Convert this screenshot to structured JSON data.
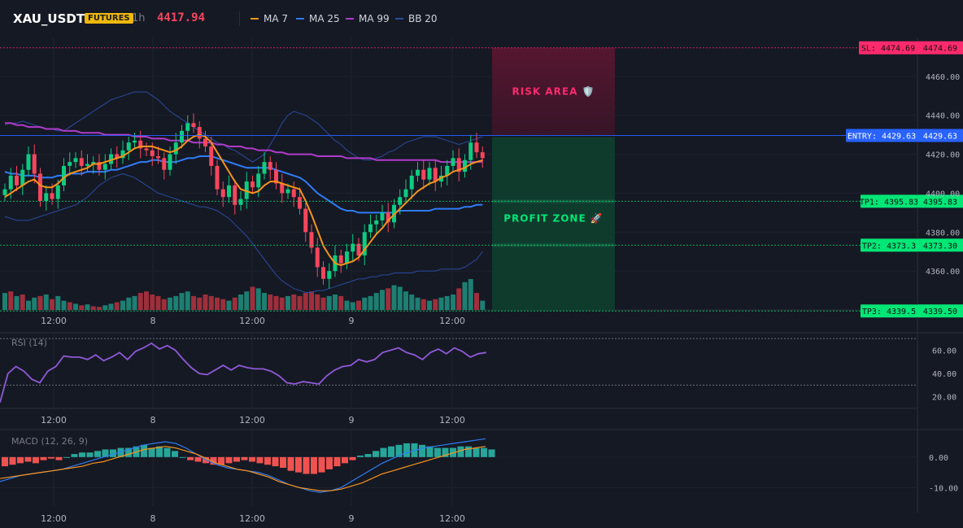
{
  "header": {
    "symbol": "XAU_USDT",
    "badge": "FUTURES",
    "timeframe": "1h",
    "last_price": "4417.94",
    "legend": [
      {
        "label": "MA 7",
        "color": "#f7931a"
      },
      {
        "label": "MA 25",
        "color": "#2f7cf6"
      },
      {
        "label": "MA 99",
        "color": "#b03bc9"
      },
      {
        "label": "BB 20",
        "color": "#2b4a9e"
      }
    ]
  },
  "colors": {
    "up": "#0ecb81",
    "down": "#f6465d",
    "vol_up": "#1d7f72",
    "vol_down": "#9e2f3c"
  },
  "chart_data": [
    {
      "type": "candlestick",
      "name": "price",
      "ylim": [
        4340,
        4480
      ],
      "y_ticks": [
        4360,
        4380,
        4400,
        4420,
        4440,
        4460
      ],
      "y_tick_labels": [
        "4360.00",
        "4380.00",
        "4400.00",
        "4420.00",
        "4440.00",
        "4460.00"
      ],
      "x_tick_labels": [
        "12:00",
        "8",
        "12:00",
        "9",
        "12:00"
      ],
      "close": [
        4402,
        4409,
        4404,
        4412,
        4420,
        4410,
        4396,
        4400,
        4397,
        4404,
        4414,
        4416,
        4418,
        4414,
        4415,
        4416,
        4412,
        4415,
        4420,
        4418,
        4422,
        4426,
        4427,
        4423,
        4422,
        4419,
        4418,
        4412,
        4420,
        4426,
        4432,
        4436,
        4434,
        4428,
        4424,
        4414,
        4402,
        4398,
        4404,
        4394,
        4397,
        4406,
        4403,
        4410,
        4416,
        4412,
        4405,
        4400,
        4402,
        4398,
        4392,
        4380,
        4372,
        4362,
        4356,
        4360,
        4368,
        4364,
        4370,
        4374,
        4368,
        4380,
        4384,
        4386,
        4390,
        4385,
        4394,
        4398,
        4402,
        4409,
        4412,
        4407,
        4413,
        4406,
        4409,
        4414,
        4418,
        4411,
        4417,
        4426,
        4421,
        4418
      ],
      "ma7": [
        4398,
        4400,
        4402,
        4404,
        4406,
        4407,
        4404,
        4403,
        4403,
        4405,
        4408,
        4410,
        4411,
        4412,
        4413,
        4415,
        4415,
        4416,
        4417,
        4418,
        4419,
        4421,
        4423,
        4424,
        4424,
        4424,
        4423,
        4422,
        4421,
        4422,
        4424,
        4427,
        4429,
        4430,
        4429,
        4426,
        4421,
        4416,
        4411,
        4406,
        4402,
        4401,
        4400,
        4401,
        4404,
        4406,
        4406,
        4405,
        4404,
        4403,
        4402,
        4396,
        4389,
        4381,
        4373,
        4368,
        4364,
        4363,
        4364,
        4365,
        4367,
        4371,
        4375,
        4379,
        4382,
        4386,
        4389,
        4392,
        4395,
        4398,
        4401,
        4403,
        4405,
        4406,
        4408,
        4409,
        4411,
        4412,
        4413,
        4415,
        4416,
        4417
      ],
      "ma25": [
        4411,
        4410,
        4410,
        4409,
        4409,
        4409,
        4408,
        4408,
        4408,
        4409,
        4409,
        4410,
        4410,
        4410,
        4411,
        4411,
        4411,
        4411,
        4412,
        4412,
        4413,
        4414,
        4415,
        4416,
        4416,
        4417,
        4417,
        4416,
        4416,
        4416,
        4417,
        4418,
        4418,
        4419,
        4419,
        4419,
        4418,
        4417,
        4416,
        4415,
        4414,
        4413,
        4413,
        4413,
        4413,
        4413,
        4412,
        4411,
        4410,
        4409,
        4408,
        4406,
        4403,
        4400,
        4398,
        4396,
        4394,
        4392,
        4391,
        4391,
        4390,
        4390,
        4390,
        4390,
        4390,
        4390,
        4390,
        4391,
        4391,
        4391,
        4391,
        4391,
        4391,
        4392,
        4392,
        4392,
        4392,
        4392,
        4393,
        4393,
        4394,
        4394
      ],
      "ma99": [
        4436,
        4436,
        4435,
        4435,
        4434,
        4434,
        4434,
        4433,
        4433,
        4433,
        4432,
        4432,
        4432,
        4431,
        4431,
        4431,
        4431,
        4430,
        4430,
        4430,
        4430,
        4430,
        4429,
        4429,
        4429,
        4428,
        4428,
        4428,
        4427,
        4427,
        4427,
        4427,
        4426,
        4426,
        4426,
        4426,
        4425,
        4425,
        4424,
        4424,
        4424,
        4423,
        4423,
        4422,
        4422,
        4422,
        4421,
        4421,
        4420,
        4420,
        4420,
        4420,
        4420,
        4419,
        4419,
        4419,
        4419,
        4419,
        4418,
        4418,
        4418,
        4418,
        4418,
        4417,
        4417,
        4417,
        4417,
        4417,
        4417,
        4417,
        4417,
        4417,
        4417,
        4417,
        4416,
        4416,
        4416,
        4416,
        4416,
        4416,
        4416,
        4416
      ],
      "bb_upper": [
        4435,
        4436,
        4436,
        4437,
        4436,
        4435,
        4434,
        4433,
        4433,
        4432,
        4432,
        4434,
        4436,
        4438,
        4440,
        4442,
        4444,
        4446,
        4448,
        4449,
        4450,
        4451,
        4452,
        4452,
        4452,
        4450,
        4448,
        4445,
        4442,
        4440,
        4438,
        4436,
        4434,
        4432,
        4430,
        4428,
        4426,
        4425,
        4423,
        4422,
        4420,
        4418,
        4416,
        4418,
        4420,
        4425,
        4430,
        4436,
        4440,
        4442,
        4441,
        4440,
        4438,
        4436,
        4433,
        4430,
        4427,
        4425,
        4422,
        4420,
        4418,
        4417,
        4417,
        4418,
        4419,
        4421,
        4422,
        4424,
        4426,
        4427,
        4428,
        4429,
        4429,
        4429,
        4428,
        4427,
        4426,
        4425,
        4426,
        4427,
        4428,
        4429
      ],
      "bb_lower": [
        4388,
        4387,
        4386,
        4386,
        4386,
        4387,
        4388,
        4389,
        4390,
        4391,
        4392,
        4393,
        4394,
        4396,
        4398,
        4401,
        4404,
        4406,
        4408,
        4409,
        4410,
        4409,
        4408,
        4406,
        4404,
        4402,
        4400,
        4399,
        4398,
        4397,
        4396,
        4395,
        4394,
        4393,
        4393,
        4392,
        4391,
        4389,
        4387,
        4384,
        4381,
        4378,
        4374,
        4370,
        4366,
        4362,
        4358,
        4355,
        4353,
        4351,
        4350,
        4349,
        4349,
        4350,
        4350,
        4351,
        4352,
        4353,
        4354,
        4355,
        4356,
        4356,
        4357,
        4357,
        4358,
        4358,
        4359,
        4359,
        4359,
        4359,
        4360,
        4360,
        4360,
        4360,
        4361,
        4361,
        4361,
        4361,
        4362,
        4364,
        4366,
        4370
      ],
      "levels": [
        {
          "key": "sl",
          "price": 4474.69,
          "label": "SL: 4474.69",
          "value_label": "4474.69",
          "color": "#ff2a6d"
        },
        {
          "key": "entry",
          "price": 4429.63,
          "label": "ENTRY: 4429.63",
          "value_label": "4429.63",
          "color": "#2962ff"
        },
        {
          "key": "tp1",
          "price": 4395.83,
          "label": "TP1: 4395.83",
          "value_label": "4395.83",
          "color": "#00e676"
        },
        {
          "key": "tp2",
          "price": 4373.3,
          "label": "TP2: 4373.3",
          "value_label": "4373.30",
          "color": "#00e676"
        },
        {
          "key": "tp3",
          "price": 4339.5,
          "label": "TP3: 4339.5",
          "value_label": "4339.50",
          "color": "#00e676"
        }
      ],
      "zones": {
        "risk_label": "RISK AREA 🛡️",
        "profit_label": "PROFIT ZONE 🚀"
      },
      "volume": [
        0.55,
        0.6,
        0.45,
        0.5,
        0.3,
        0.4,
        0.45,
        0.5,
        0.35,
        0.45,
        0.3,
        0.25,
        0.2,
        0.15,
        0.18,
        0.12,
        0.1,
        0.15,
        0.2,
        0.25,
        0.3,
        0.4,
        0.45,
        0.55,
        0.6,
        0.5,
        0.45,
        0.35,
        0.4,
        0.45,
        0.55,
        0.6,
        0.45,
        0.4,
        0.5,
        0.45,
        0.4,
        0.35,
        0.3,
        0.4,
        0.5,
        0.6,
        0.75,
        0.7,
        0.55,
        0.5,
        0.45,
        0.4,
        0.45,
        0.5,
        0.45,
        0.55,
        0.6,
        0.5,
        0.4,
        0.45,
        0.5,
        0.45,
        0.3,
        0.25,
        0.3,
        0.4,
        0.45,
        0.55,
        0.65,
        0.7,
        0.8,
        0.75,
        0.6,
        0.5,
        0.4,
        0.35,
        0.3,
        0.35,
        0.4,
        0.45,
        0.5,
        0.7,
        0.9,
        1.0,
        0.55,
        0.3
      ],
      "volume_up": [
        1,
        0,
        1,
        0,
        1,
        1,
        0,
        1,
        0,
        1,
        1,
        0,
        1,
        0,
        1,
        0,
        0,
        1,
        1,
        0,
        1,
        1,
        1,
        0,
        0,
        0,
        0,
        0,
        1,
        1,
        1,
        1,
        0,
        0,
        0,
        0,
        0,
        0,
        1,
        0,
        1,
        1,
        0,
        1,
        1,
        0,
        0,
        0,
        1,
        0,
        0,
        0,
        0,
        0,
        0,
        1,
        1,
        0,
        1,
        1,
        0,
        1,
        1,
        1,
        1,
        0,
        1,
        1,
        1,
        1,
        1,
        0,
        1,
        0,
        1,
        1,
        1,
        0,
        1,
        1,
        0,
        1
      ]
    },
    {
      "type": "line",
      "name": "RSI (14)",
      "ylim": [
        10,
        75
      ],
      "y_ticks": [
        20,
        40,
        60
      ],
      "y_tick_labels": [
        "20.00",
        "40.00",
        "60.00"
      ],
      "x_tick_labels": [
        "12:00",
        "8",
        "12:00",
        "9",
        "12:00"
      ],
      "values": [
        15,
        40,
        46,
        42,
        35,
        32,
        42,
        46,
        55,
        54,
        54,
        52,
        56,
        51,
        54,
        58,
        52,
        59,
        62,
        66,
        61,
        64,
        60,
        52,
        45,
        40,
        39,
        43,
        47,
        43,
        47,
        45,
        44,
        44,
        42,
        38,
        32,
        31,
        33,
        32,
        31,
        38,
        43,
        46,
        47,
        52,
        50,
        52,
        58,
        60,
        62,
        58,
        56,
        52,
        58,
        61,
        57,
        62,
        59,
        54,
        57,
        58
      ],
      "levels": [
        30,
        70
      ]
    },
    {
      "type": "bar",
      "name": "MACD (12, 26, 9)",
      "ylim": [
        -16,
        9
      ],
      "y_ticks": [
        0,
        -10
      ],
      "y_tick_labels": [
        "0.00",
        "-10.00"
      ],
      "x_tick_labels": [
        "12:00",
        "8",
        "12:00",
        "9",
        "12:00"
      ],
      "hist": [
        -3,
        -2.5,
        -2,
        -1.5,
        -2,
        -1,
        -0.5,
        -1,
        0,
        1,
        1.5,
        1.5,
        2,
        2.5,
        2.5,
        3,
        3,
        3.5,
        4,
        3,
        3.5,
        3,
        2,
        0,
        -1,
        -1.5,
        -2,
        -2.5,
        -2.5,
        -2,
        -1.5,
        -1,
        -1.5,
        -2,
        -2.5,
        -3,
        -3.5,
        -4.5,
        -5,
        -5.5,
        -5.5,
        -5,
        -4,
        -3,
        -2,
        -1,
        0.5,
        1,
        2,
        3,
        3.5,
        4,
        4.5,
        4.5,
        4,
        3.5,
        3,
        3,
        3,
        3.5,
        3.5,
        3,
        3,
        2.5
      ],
      "macd": [
        -8,
        -7,
        -6,
        -5.5,
        -5,
        -4.5,
        -4,
        -3,
        -2,
        -1,
        0,
        1,
        2,
        3,
        4,
        4.5,
        5,
        4.5,
        3,
        1,
        -1,
        -2.5,
        -3.5,
        -4,
        -4.5,
        -5,
        -6,
        -7.5,
        -9,
        -10,
        -11,
        -11.5,
        -11,
        -10,
        -8,
        -6,
        -4,
        -2,
        -0.5,
        1,
        2,
        3,
        3.5,
        4,
        4.5,
        5,
        5.5,
        6
      ],
      "signal": [
        -7,
        -6.5,
        -6,
        -5.5,
        -5,
        -4.5,
        -4,
        -3.5,
        -3,
        -2,
        -1.5,
        -0.5,
        0.5,
        1.5,
        2.5,
        3,
        3.5,
        3,
        2,
        1,
        -0.5,
        -2,
        -3,
        -4,
        -4.5,
        -5.5,
        -6.5,
        -8,
        -9,
        -10,
        -10.5,
        -11,
        -11,
        -10.5,
        -9.5,
        -8.5,
        -7,
        -5.5,
        -4.5,
        -3.5,
        -2.5,
        -1.5,
        -0.5,
        0.5,
        1.5,
        2.5,
        3,
        3.5
      ]
    }
  ]
}
